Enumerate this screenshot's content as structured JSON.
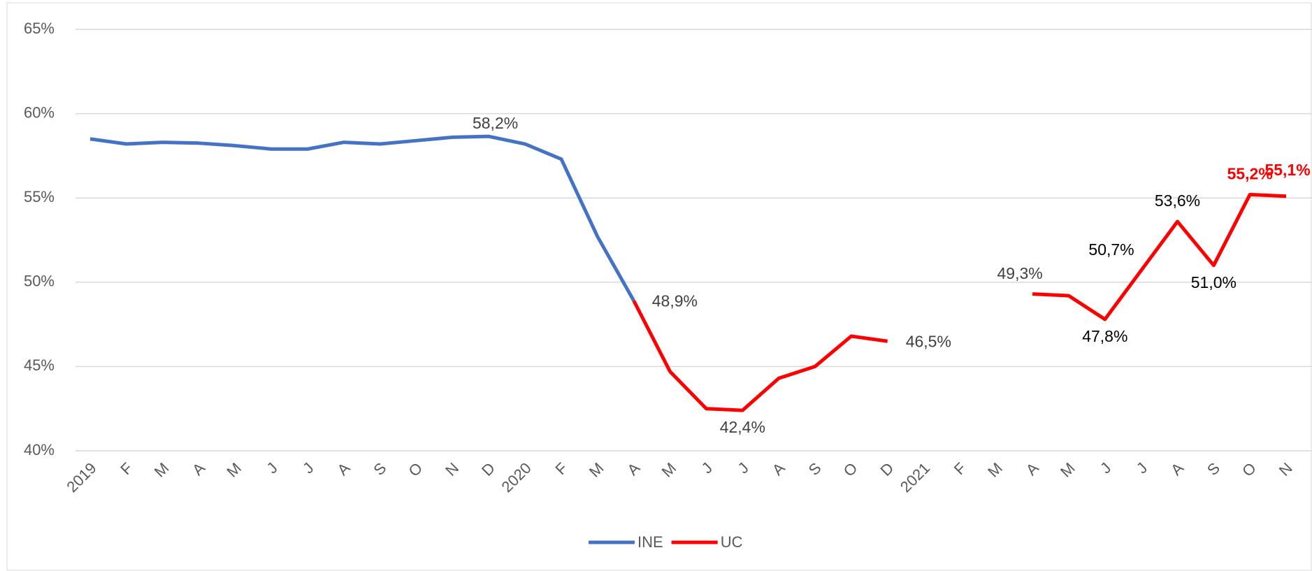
{
  "chart_data": {
    "type": "line",
    "categories": [
      "2019",
      "F",
      "M",
      "A",
      "M",
      "J",
      "J",
      "A",
      "S",
      "O",
      "N",
      "D",
      "2020",
      "F",
      "M",
      "A",
      "M",
      "J",
      "J",
      "A",
      "S",
      "O",
      "D",
      "2021",
      "F",
      "M",
      "A",
      "M",
      "J",
      "J",
      "A",
      "S",
      "O",
      "N"
    ],
    "series": [
      {
        "name": "INE",
        "color": "#4472c4",
        "values": [
          58.5,
          58.2,
          58.3,
          58.25,
          58.1,
          57.9,
          57.9,
          58.3,
          58.2,
          58.4,
          58.6,
          58.65,
          58.2,
          57.3,
          52.7,
          48.9,
          null,
          null,
          null,
          null,
          null,
          null,
          null,
          null,
          null,
          null,
          null,
          null,
          null,
          null,
          null,
          null,
          null,
          null
        ],
        "value_labels": [
          null,
          null,
          null,
          null,
          null,
          null,
          null,
          null,
          null,
          null,
          null,
          null,
          "58,2%",
          null,
          null,
          "48,9%",
          null,
          null,
          null,
          null,
          null,
          null,
          null,
          null,
          null,
          null,
          null,
          null,
          null,
          null,
          null,
          null,
          null,
          null
        ],
        "value_label_colors": [
          null,
          null,
          null,
          null,
          null,
          null,
          null,
          null,
          null,
          null,
          null,
          null,
          "#404040",
          null,
          null,
          "#404040",
          null,
          null,
          null,
          null,
          null,
          null,
          null,
          null,
          null,
          null,
          null,
          null,
          null,
          null,
          null,
          null,
          null,
          null
        ]
      },
      {
        "name": "UC",
        "color": "#ff0000",
        "values": [
          null,
          null,
          null,
          null,
          null,
          null,
          null,
          null,
          null,
          null,
          null,
          null,
          null,
          null,
          null,
          48.9,
          44.7,
          42.5,
          42.4,
          44.3,
          45.0,
          46.8,
          46.5,
          null,
          null,
          null,
          49.3,
          49.2,
          47.8,
          50.7,
          53.6,
          51.0,
          55.2,
          55.1
        ],
        "value_labels": [
          null,
          null,
          null,
          null,
          null,
          null,
          null,
          null,
          null,
          null,
          null,
          null,
          null,
          null,
          null,
          null,
          null,
          null,
          "42,4%",
          null,
          null,
          null,
          "46,5%",
          null,
          null,
          null,
          "49,3%",
          null,
          "47,8%",
          "50,7%",
          "53,6%",
          "51,0%",
          "55,2%",
          "55,1%"
        ],
        "value_label_colors": [
          null,
          null,
          null,
          null,
          null,
          null,
          null,
          null,
          null,
          null,
          null,
          null,
          null,
          null,
          null,
          null,
          null,
          null,
          "#404040",
          null,
          null,
          null,
          "#404040",
          null,
          null,
          null,
          "#404040",
          null,
          "#000000",
          "#000000",
          "#000000",
          "#000000",
          "#ff0000",
          "#ff0000"
        ]
      }
    ],
    "ylim": [
      40,
      65
    ],
    "yticks": [
      {
        "value": 40,
        "label": "40%"
      },
      {
        "value": 45,
        "label": "45%"
      },
      {
        "value": 50,
        "label": "50%"
      },
      {
        "value": 55,
        "label": "55%"
      },
      {
        "value": 60,
        "label": "60%"
      },
      {
        "value": 65,
        "label": "65%"
      }
    ],
    "grid": true,
    "legend": "bottom"
  }
}
